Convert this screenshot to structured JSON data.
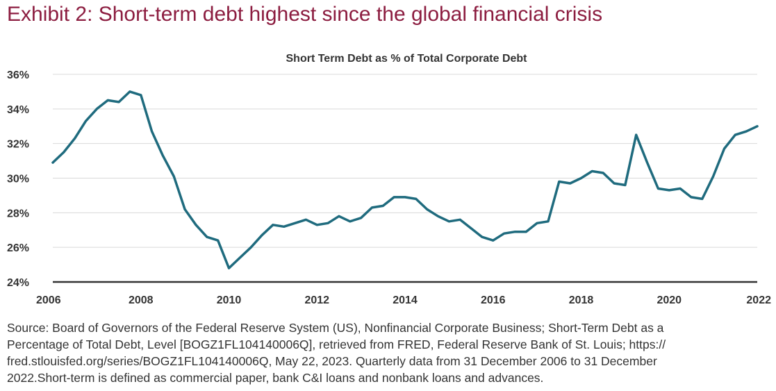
{
  "header": {
    "title": "Exhibit 2: Short-term debt highest since the global financial crisis"
  },
  "chart_data": {
    "type": "line",
    "title": "Short Term Debt as % of Total Corporate Debt",
    "xlabel": "",
    "ylabel": "",
    "xlim": [
      2006,
      2022
    ],
    "ylim": [
      24,
      36
    ],
    "x_ticks": [
      "2006",
      "2008",
      "2010",
      "2012",
      "2014",
      "2016",
      "2018",
      "2020",
      "2022"
    ],
    "y_ticks": [
      "24%",
      "26%",
      "28%",
      "30%",
      "32%",
      "34%",
      "36%"
    ],
    "grid": "horizontal",
    "legend": "none",
    "colors": {
      "line": "#1f6b7e",
      "grid": "#d9d9d9",
      "axis": "#333333",
      "title": "#8c1d40"
    },
    "series": [
      {
        "x": [
          2006.0,
          2006.25,
          2006.5,
          2006.75,
          2007.0,
          2007.25,
          2007.5,
          2007.75,
          2008.0,
          2008.25,
          2008.5,
          2008.75,
          2009.0,
          2009.25,
          2009.5,
          2009.75,
          2010.0,
          2010.25,
          2010.5,
          2010.75,
          2011.0,
          2011.25,
          2011.5,
          2011.75,
          2012.0,
          2012.25,
          2012.5,
          2012.75,
          2013.0,
          2013.25,
          2013.5,
          2013.75,
          2014.0,
          2014.25,
          2014.5,
          2014.75,
          2015.0,
          2015.25,
          2015.5,
          2015.75,
          2016.0,
          2016.25,
          2016.5,
          2016.75,
          2017.0,
          2017.25,
          2017.5,
          2017.75,
          2018.0,
          2018.25,
          2018.5,
          2018.75,
          2019.0,
          2019.25,
          2019.5,
          2019.75,
          2020.0,
          2020.25,
          2020.5,
          2020.75,
          2021.0,
          2021.25,
          2021.5,
          2021.75,
          2022.0
        ],
        "values": [
          30.9,
          31.5,
          32.3,
          33.3,
          34.0,
          34.5,
          34.4,
          35.0,
          34.8,
          32.7,
          31.3,
          30.1,
          28.2,
          27.3,
          26.6,
          26.4,
          24.8,
          25.4,
          26.0,
          26.7,
          27.3,
          27.2,
          27.4,
          27.6,
          27.3,
          27.4,
          27.8,
          27.5,
          27.7,
          28.3,
          28.4,
          28.9,
          28.9,
          28.8,
          28.2,
          27.8,
          27.5,
          27.6,
          27.1,
          26.6,
          26.4,
          26.8,
          26.9,
          26.9,
          27.4,
          27.5,
          29.8,
          29.7,
          30.0,
          30.4,
          30.3,
          29.7,
          29.6,
          32.5,
          30.9,
          29.4,
          29.3,
          29.4,
          28.9,
          28.8,
          30.1,
          31.7,
          32.5,
          32.7,
          33.0
        ]
      }
    ]
  },
  "source": {
    "lines": [
      "Source: Board of Governors of the Federal Reserve System (US), Nonfinancial Corporate Business; Short-Term Debt as a",
      "Percentage of Total Debt, Level [BOGZ1FL104140006Q], retrieved from FRED, Federal Reserve Bank of St. Louis; https://",
      "fred.stlouisfed.org/series/BOGZ1FL104140006Q, May 22, 2023. Quarterly data from 31 December 2006 to 31 December",
      "2022.Short-term is defined as commercial paper, bank C&I loans and nonbank loans and advances."
    ]
  }
}
